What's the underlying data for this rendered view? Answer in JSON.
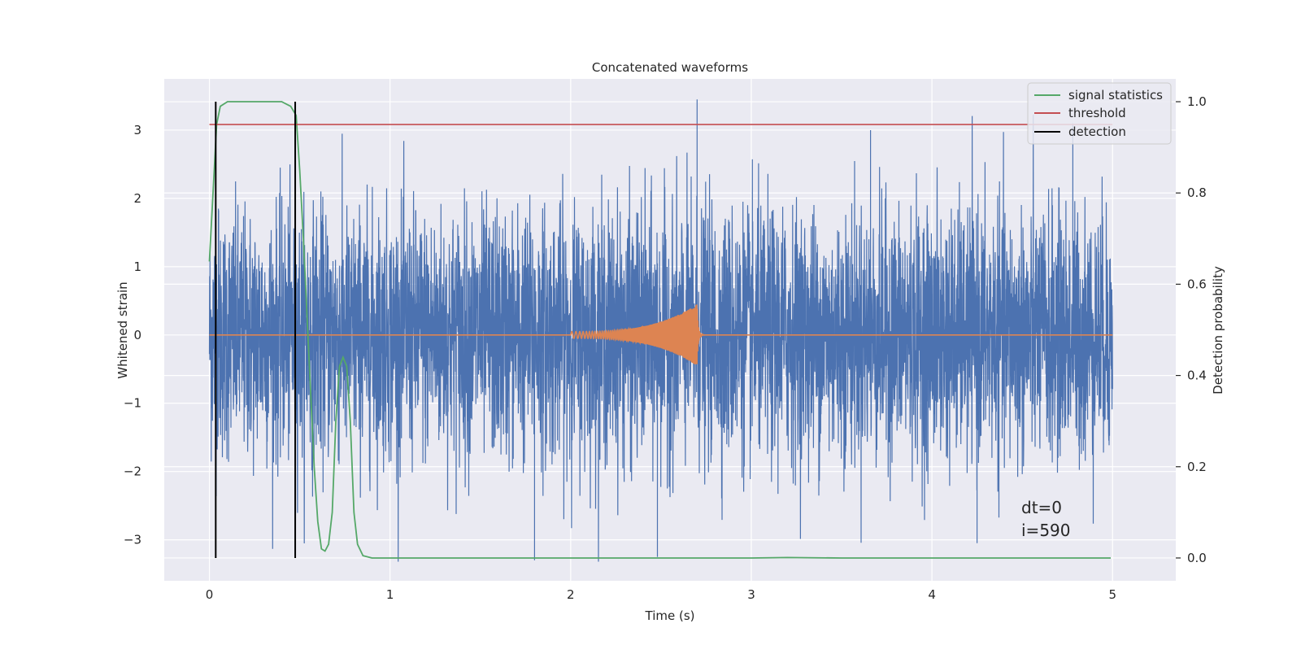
{
  "chart_data": {
    "type": "line",
    "title": "Concatenated waveforms",
    "xlabel": "Time (s)",
    "ylabel": "Whitened strain",
    "y2label": "Detection probability",
    "xlim": [
      -0.25,
      5.35
    ],
    "ylim": [
      -3.6,
      3.75
    ],
    "y2lim": [
      -0.05,
      1.05
    ],
    "x_ticks": [
      0,
      1,
      2,
      3,
      4,
      5
    ],
    "y_ticks": [
      -3,
      -2,
      -1,
      0,
      1,
      2,
      3
    ],
    "y2_ticks": [
      0.0,
      0.2,
      0.4,
      0.6,
      0.8,
      1.0
    ],
    "x_tick_labels": [
      "0",
      "1",
      "2",
      "3",
      "4",
      "5"
    ],
    "y_tick_labels": [
      "−3",
      "−2",
      "−1",
      "0",
      "1",
      "2",
      "3"
    ],
    "y2_tick_labels": [
      "0.0",
      "0.2",
      "0.4",
      "0.6",
      "0.8",
      "1.0"
    ],
    "grid": true,
    "legend_position": "top-right",
    "legend": [
      {
        "label": "signal statistics",
        "color": "#55a868"
      },
      {
        "label": "threshold",
        "color": "#c44e52"
      },
      {
        "label": "detection",
        "color": "#000000"
      }
    ],
    "annotation_lines": [
      "dt=0",
      "i=590"
    ],
    "series": [
      {
        "color": "#4c72b0",
        "axis": "left",
        "x_range": [
          0,
          5
        ],
        "envelope_core": [
          -1.2,
          1.2
        ],
        "peak_min": -3.32,
        "peak_max": 3.45,
        "note_peaks": [
          [
            0.05,
            1.85
          ],
          [
            1.8,
            -3.3
          ],
          [
            2.48,
            -3.25
          ],
          [
            2.7,
            3.45
          ],
          [
            3.66,
            3.0
          ],
          [
            4.25,
            -3.05
          ],
          [
            4.78,
            3.1
          ]
        ]
      },
      {
        "color": "#dd8452",
        "axis": "left",
        "chirp_start": 2.0,
        "chirp_end": 2.7,
        "amp_start": 0.05,
        "amp_peak": 0.45
      },
      {
        "name": "signal statistics",
        "color": "#55a868",
        "axis": "right",
        "x": [
          0.0,
          0.02,
          0.04,
          0.06,
          0.1,
          0.2,
          0.3,
          0.4,
          0.45,
          0.48,
          0.5,
          0.52,
          0.55,
          0.58,
          0.6,
          0.62,
          0.64,
          0.66,
          0.68,
          0.7,
          0.72,
          0.74,
          0.76,
          0.78,
          0.8,
          0.82,
          0.85,
          0.9,
          1.0,
          1.5,
          2.0,
          2.5,
          3.0,
          3.2,
          3.5,
          4.0,
          4.5,
          4.99
        ],
        "y": [
          0.65,
          0.8,
          0.95,
          0.99,
          1.0,
          1.0,
          1.0,
          1.0,
          0.99,
          0.97,
          0.85,
          0.7,
          0.45,
          0.2,
          0.08,
          0.02,
          0.015,
          0.03,
          0.1,
          0.3,
          0.42,
          0.44,
          0.42,
          0.3,
          0.1,
          0.03,
          0.005,
          0.0,
          0.0,
          0.0,
          0.0,
          0.0,
          0.0,
          0.001,
          0.0,
          0.0,
          0.0,
          0.0
        ]
      },
      {
        "name": "threshold",
        "color": "#c44e52",
        "axis": "right",
        "x": [
          0.0,
          5.0
        ],
        "y": [
          0.95,
          0.95
        ]
      },
      {
        "name": "detection",
        "color": "#000000",
        "axis": "right",
        "x": [
          0.035,
          0.475
        ],
        "y_range": [
          0.0,
          1.0
        ]
      }
    ]
  }
}
